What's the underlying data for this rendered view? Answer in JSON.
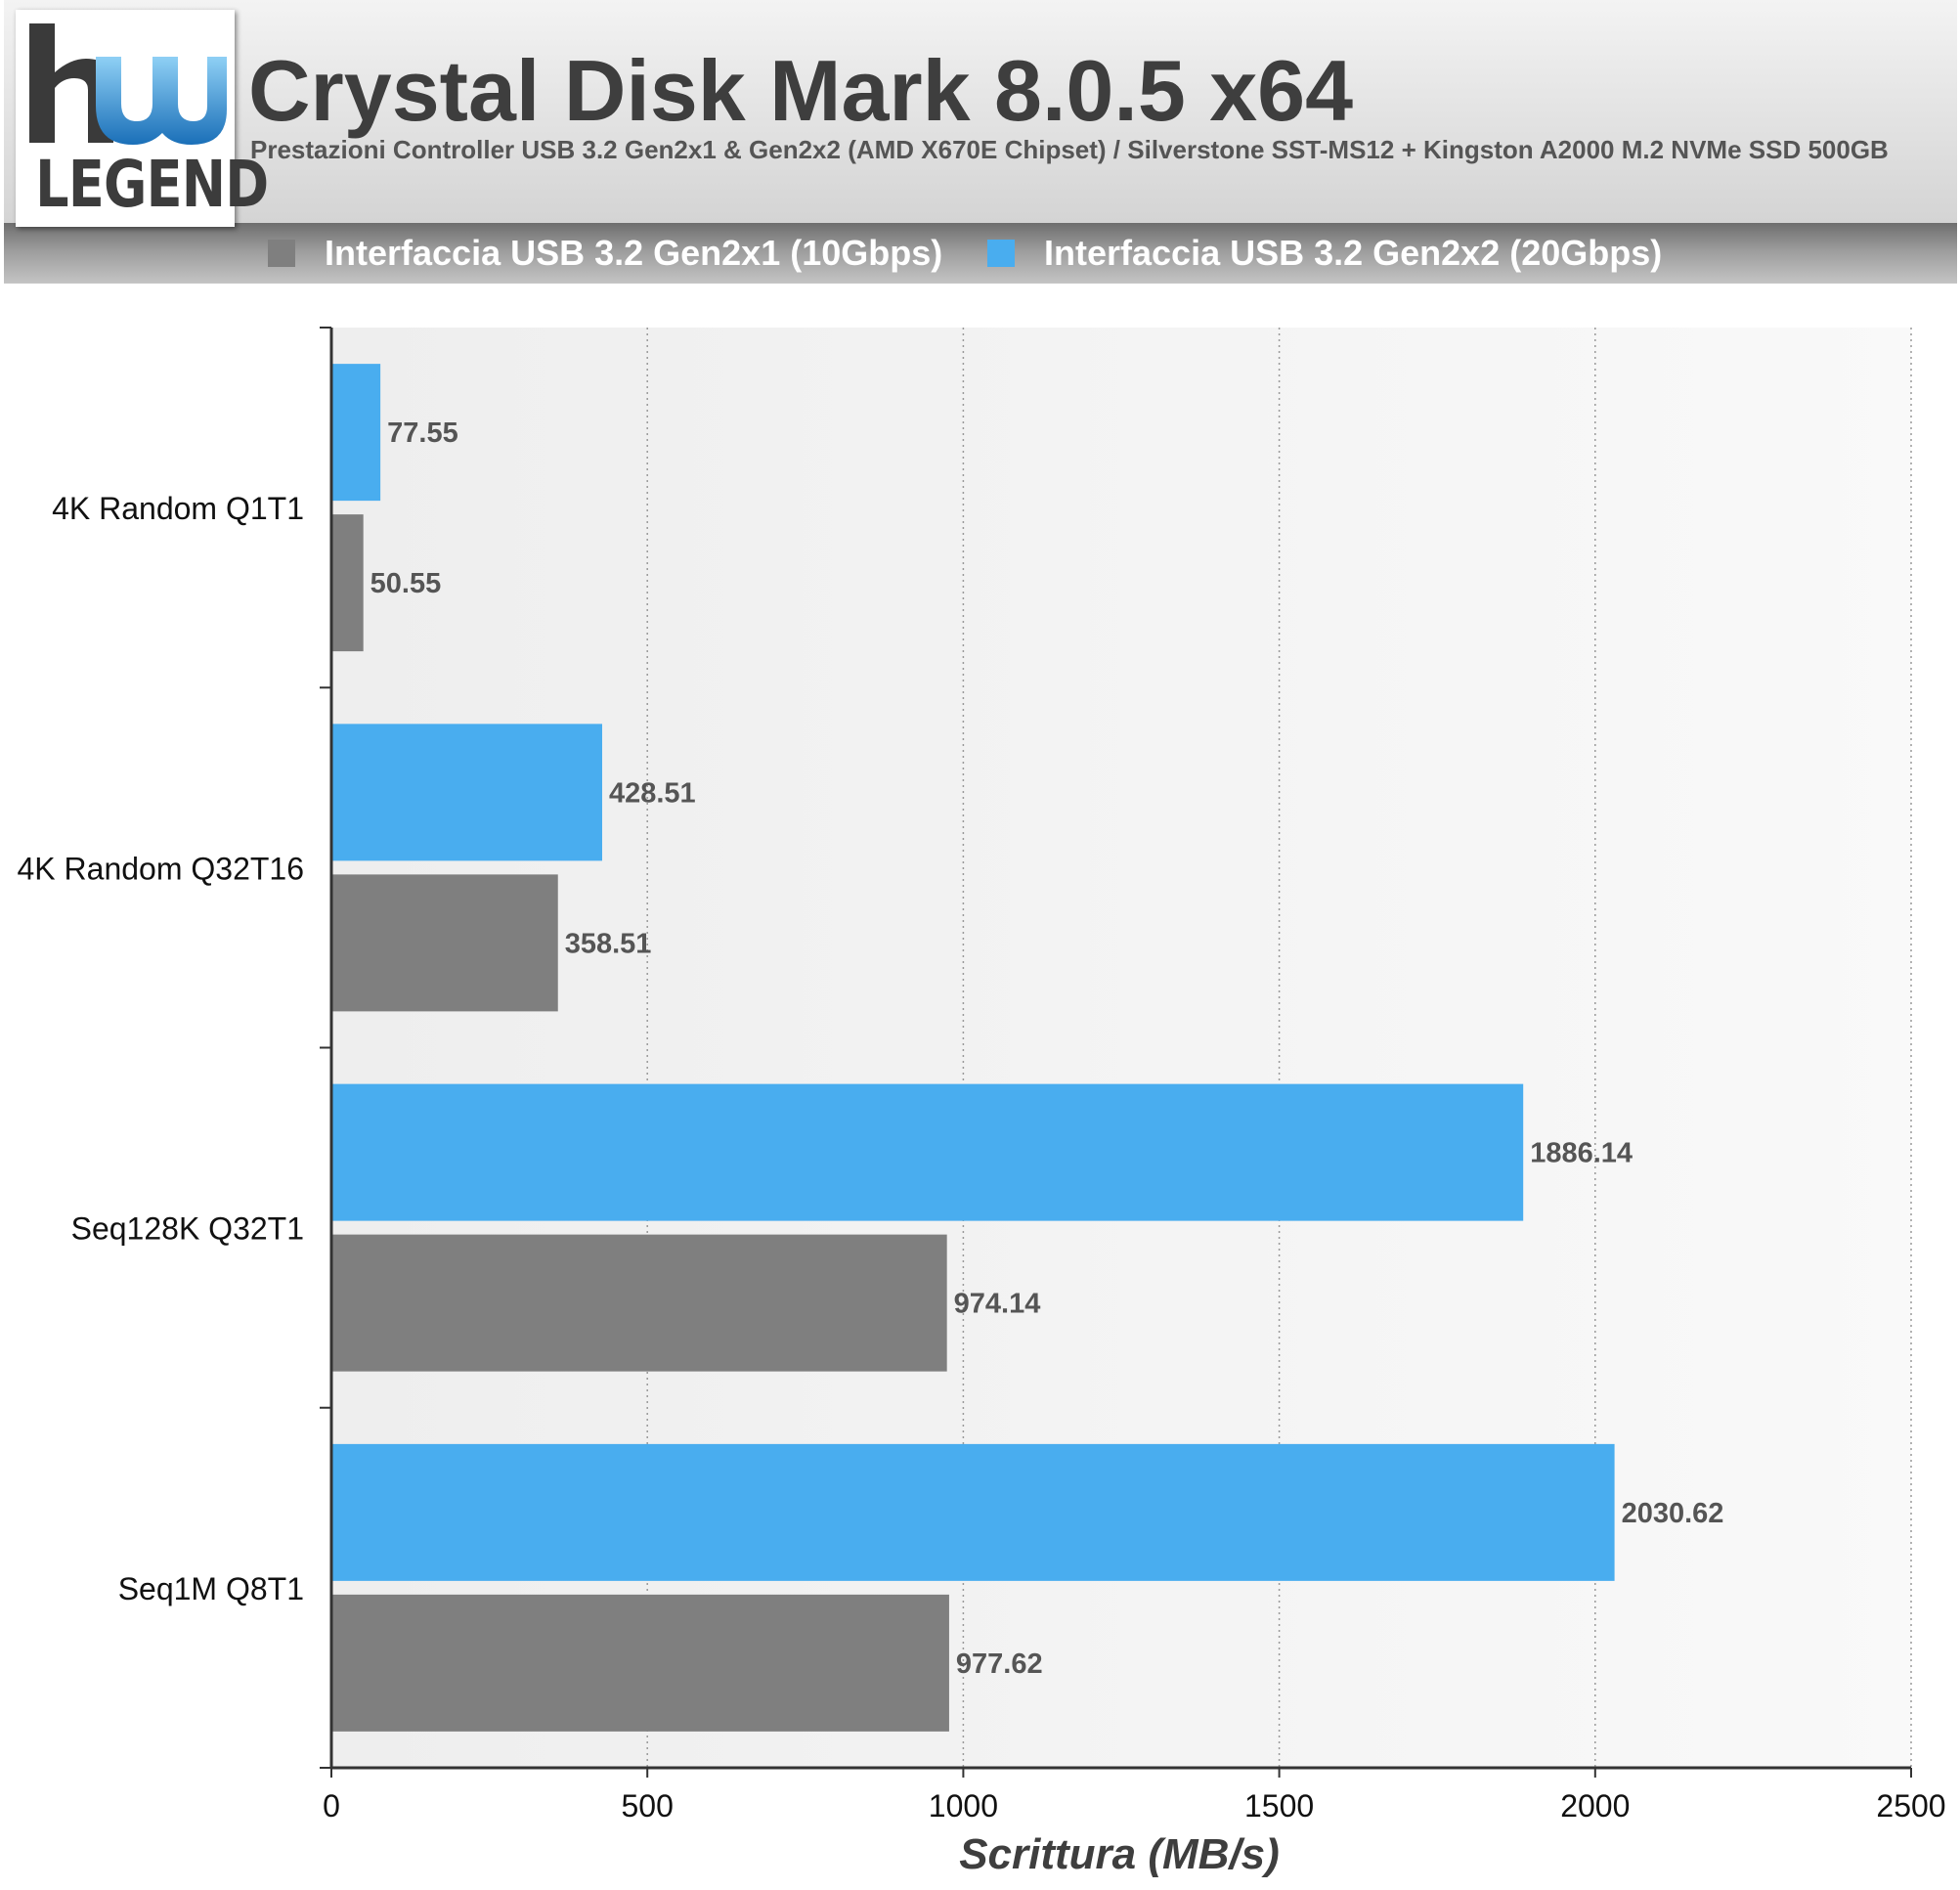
{
  "header": {
    "logo_text": "LEGEND",
    "title": "Crystal Disk Mark 8.0.5 x64",
    "subtitle": "Prestazioni Controller USB 3.2 Gen2x1 & Gen2x2 (AMD X670E Chipset) / Silverstone SST-MS12 + Kingston A2000 M.2 NVMe SSD 500GB"
  },
  "legend": [
    {
      "label": "Interfaccia USB 3.2 Gen2x1 (10Gbps)",
      "color": "#7f7f7f"
    },
    {
      "label": "Interfaccia USB 3.2 Gen2x2 (20Gbps)",
      "color": "#49adef"
    }
  ],
  "chart_data": {
    "type": "bar",
    "orientation": "horizontal",
    "categories": [
      "4K Random Q1T1",
      "4K Random Q32T16",
      "Seq128K Q32T1",
      "Seq1M Q8T1"
    ],
    "series": [
      {
        "name": "Interfaccia USB 3.2 Gen2x2 (20Gbps)",
        "color": "#49adef",
        "values": [
          77.55,
          428.51,
          1886.14,
          2030.62
        ]
      },
      {
        "name": "Interfaccia USB 3.2 Gen2x1 (10Gbps)",
        "color": "#7f7f7f",
        "values": [
          50.55,
          358.51,
          974.14,
          977.62
        ]
      }
    ],
    "xlabel": "Scrittura (MB/s)",
    "xlim": [
      0,
      2500
    ],
    "xticks": [
      0,
      500,
      1000,
      1500,
      2000,
      2500
    ],
    "grid": "vertical-dotted",
    "legend_position": "top"
  }
}
